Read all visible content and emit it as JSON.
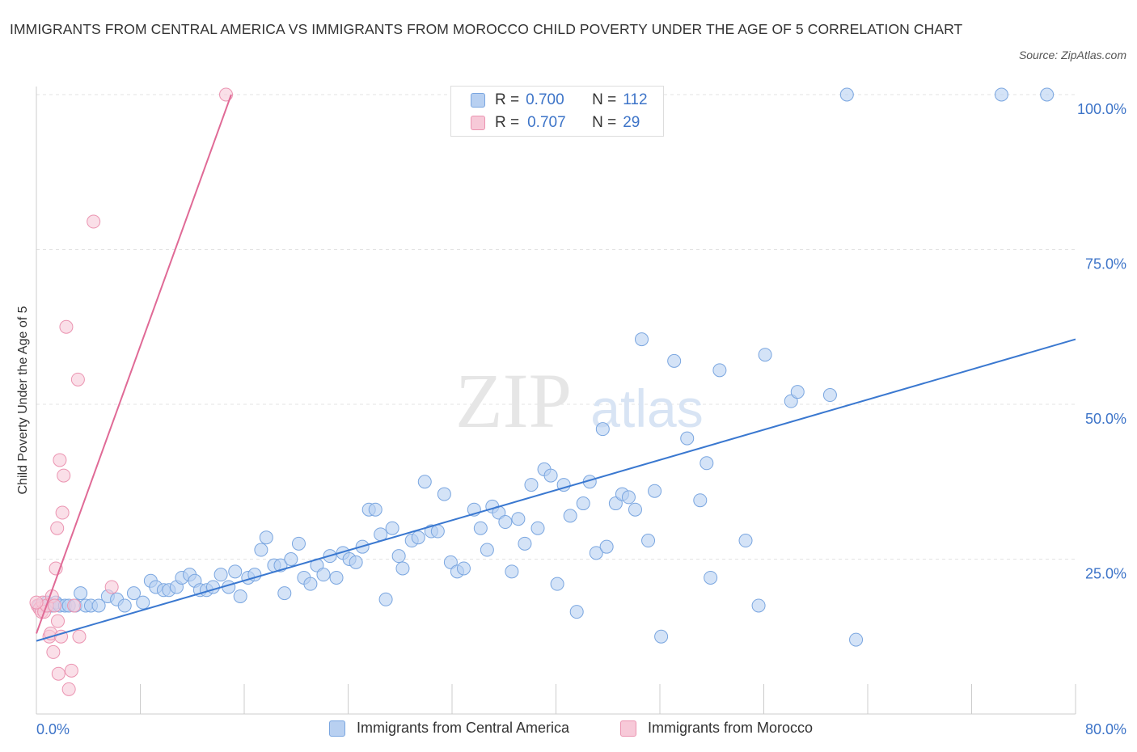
{
  "title": "IMMIGRANTS FROM CENTRAL AMERICA VS IMMIGRANTS FROM MOROCCO CHILD POVERTY UNDER THE AGE OF 5 CORRELATION CHART",
  "source": "Source: ZipAtlas.com",
  "watermark": {
    "zip": "ZIP",
    "atlas": "atlas"
  },
  "colors": {
    "blue": "#3a78d0",
    "blue_fill": "#b8d0f1",
    "blue_stroke": "#7aa6e0",
    "pink": "#e06a96",
    "pink_fill": "#f7c9d8",
    "pink_stroke": "#eb94b1",
    "tick_label": "#3d74c8",
    "grid": "#e3e3e3"
  },
  "legend": {
    "rows": [
      {
        "r_label": "R =",
        "r_value": "0.700",
        "n_label": "N =",
        "n_value": "112"
      },
      {
        "r_label": "R =",
        "r_value": "0.707",
        "n_label": "N =",
        "n_value": "29"
      }
    ]
  },
  "chart_data": {
    "type": "scatter",
    "title": "IMMIGRANTS FROM CENTRAL AMERICA VS IMMIGRANTS FROM MOROCCO CHILD POVERTY UNDER THE AGE OF 5 CORRELATION CHART",
    "xlabel": "",
    "ylabel": "Child Poverty Under the Age of 5",
    "xlim": [
      0,
      80
    ],
    "ylim": [
      0,
      100
    ],
    "x_tick_labels": [
      {
        "value": 0,
        "label": "0.0%"
      },
      {
        "value": 80,
        "label": "80.0%"
      }
    ],
    "y_tick_labels": [
      {
        "value": 25,
        "label": "25.0%"
      },
      {
        "value": 50,
        "label": "50.0%"
      },
      {
        "value": 75,
        "label": "75.0%"
      },
      {
        "value": 100,
        "label": "100.0%"
      }
    ],
    "grid": true,
    "legend_position": "top-center",
    "series": [
      {
        "name": "Immigrants from Central America",
        "color": "#3a78d0",
        "r": 0.7,
        "n": 112,
        "trendline": [
          [
            0,
            11.8
          ],
          [
            80,
            60.5
          ]
        ],
        "points": [
          [
            0.2,
            17.5
          ],
          [
            0.4,
            17.5
          ],
          [
            0.6,
            17.5
          ],
          [
            0.8,
            18
          ],
          [
            1.0,
            17.5
          ],
          [
            1.2,
            17.5
          ],
          [
            1.5,
            18
          ],
          [
            1.8,
            17.5
          ],
          [
            2.2,
            17.5
          ],
          [
            2.5,
            17.5
          ],
          [
            3.0,
            17.5
          ],
          [
            3.4,
            19.5
          ],
          [
            3.8,
            17.5
          ],
          [
            4.2,
            17.5
          ],
          [
            4.8,
            17.5
          ],
          [
            5.5,
            19
          ],
          [
            6.2,
            18.5
          ],
          [
            6.8,
            17.5
          ],
          [
            7.5,
            19.5
          ],
          [
            8.2,
            18
          ],
          [
            8.8,
            21.5
          ],
          [
            9.2,
            20.5
          ],
          [
            9.8,
            20
          ],
          [
            10.2,
            20
          ],
          [
            10.8,
            20.5
          ],
          [
            11.2,
            22
          ],
          [
            11.8,
            22.5
          ],
          [
            12.2,
            21.5
          ],
          [
            12.6,
            20
          ],
          [
            13.1,
            20
          ],
          [
            13.6,
            20.5
          ],
          [
            14.2,
            22.5
          ],
          [
            14.8,
            20.5
          ],
          [
            15.3,
            23
          ],
          [
            15.7,
            19
          ],
          [
            16.3,
            22
          ],
          [
            16.8,
            22.5
          ],
          [
            17.3,
            26.5
          ],
          [
            17.7,
            28.5
          ],
          [
            18.3,
            24
          ],
          [
            18.8,
            24
          ],
          [
            19.1,
            19.5
          ],
          [
            19.6,
            25
          ],
          [
            20.2,
            27.5
          ],
          [
            20.6,
            22
          ],
          [
            21.1,
            21
          ],
          [
            21.6,
            24
          ],
          [
            22.1,
            22.5
          ],
          [
            22.6,
            25.5
          ],
          [
            23.1,
            22
          ],
          [
            23.6,
            26
          ],
          [
            24.1,
            25
          ],
          [
            24.6,
            24.5
          ],
          [
            25.1,
            27
          ],
          [
            25.6,
            33
          ],
          [
            26.1,
            33
          ],
          [
            26.5,
            29
          ],
          [
            26.9,
            18.5
          ],
          [
            27.4,
            30
          ],
          [
            27.9,
            25.5
          ],
          [
            28.2,
            23.5
          ],
          [
            28.9,
            28
          ],
          [
            29.4,
            28.5
          ],
          [
            29.9,
            37.5
          ],
          [
            30.4,
            29.5
          ],
          [
            30.9,
            29.5
          ],
          [
            31.4,
            35.5
          ],
          [
            31.9,
            24.5
          ],
          [
            32.4,
            23
          ],
          [
            32.9,
            23.5
          ],
          [
            33.7,
            33
          ],
          [
            34.2,
            30
          ],
          [
            34.7,
            26.5
          ],
          [
            35.1,
            33.5
          ],
          [
            35.6,
            32.5
          ],
          [
            36.1,
            31
          ],
          [
            36.6,
            23
          ],
          [
            37.1,
            31.5
          ],
          [
            37.6,
            27.5
          ],
          [
            38.1,
            37
          ],
          [
            38.6,
            30
          ],
          [
            39.1,
            39.5
          ],
          [
            39.6,
            38.5
          ],
          [
            40.1,
            21
          ],
          [
            40.6,
            37
          ],
          [
            41.1,
            32
          ],
          [
            41.6,
            16.5
          ],
          [
            42.1,
            34
          ],
          [
            42.6,
            37.5
          ],
          [
            43.1,
            26
          ],
          [
            43.6,
            46
          ],
          [
            43.9,
            27
          ],
          [
            44.6,
            34
          ],
          [
            45.1,
            35.5
          ],
          [
            45.6,
            35
          ],
          [
            46.1,
            33
          ],
          [
            46.6,
            60.5
          ],
          [
            47.1,
            28
          ],
          [
            47.6,
            36
          ],
          [
            48.1,
            12.5
          ],
          [
            49.1,
            57
          ],
          [
            50.1,
            44.5
          ],
          [
            51.1,
            34.5
          ],
          [
            51.6,
            40.5
          ],
          [
            51.9,
            22
          ],
          [
            52.6,
            55.5
          ],
          [
            54.6,
            28
          ],
          [
            55.6,
            17.5
          ],
          [
            56.1,
            58
          ],
          [
            58.1,
            50.5
          ],
          [
            58.6,
            52
          ],
          [
            61.1,
            51.5
          ],
          [
            62.4,
            100
          ],
          [
            63.1,
            12
          ],
          [
            74.3,
            100
          ],
          [
            77.8,
            100
          ]
        ]
      },
      {
        "name": "Immigrants from Morocco",
        "color": "#e06a96",
        "r": 0.707,
        "n": 29,
        "trendline": [
          [
            0,
            13
          ],
          [
            15,
            100
          ]
        ],
        "points": [
          [
            0.1,
            17.5
          ],
          [
            0.25,
            17
          ],
          [
            0.4,
            16.5
          ],
          [
            0.5,
            18
          ],
          [
            0.6,
            16.5
          ],
          [
            0.8,
            17.5
          ],
          [
            1.0,
            12.5
          ],
          [
            1.1,
            13
          ],
          [
            1.2,
            19
          ],
          [
            1.3,
            10
          ],
          [
            1.4,
            17.5
          ],
          [
            1.5,
            23.5
          ],
          [
            1.6,
            30
          ],
          [
            1.65,
            15
          ],
          [
            1.7,
            6.5
          ],
          [
            1.8,
            41
          ],
          [
            1.9,
            12.5
          ],
          [
            2.0,
            32.5
          ],
          [
            2.1,
            38.5
          ],
          [
            2.3,
            62.5
          ],
          [
            2.5,
            4
          ],
          [
            2.7,
            7
          ],
          [
            2.9,
            17.5
          ],
          [
            3.2,
            54
          ],
          [
            3.3,
            12.5
          ],
          [
            4.4,
            79.5
          ],
          [
            5.8,
            20.5
          ],
          [
            14.6,
            100
          ],
          [
            0.0,
            18
          ]
        ]
      }
    ]
  },
  "bottom_legend": [
    "Immigrants from Central America",
    "Immigrants from Morocco"
  ]
}
